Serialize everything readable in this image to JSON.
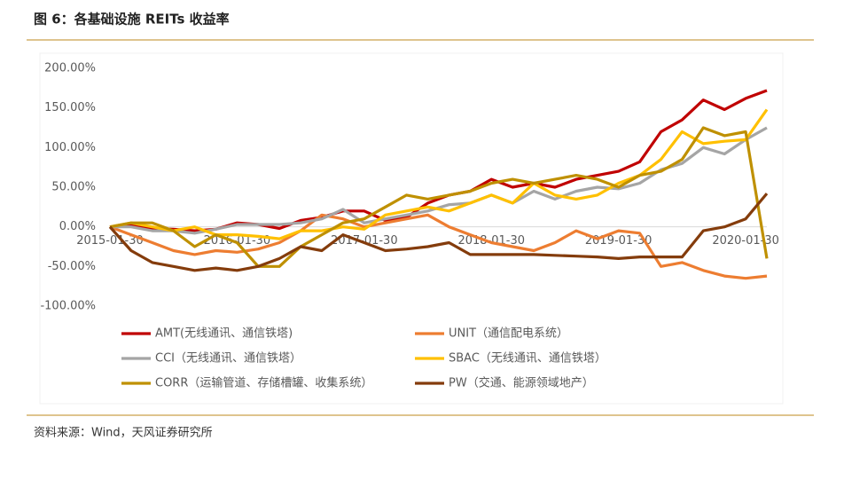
{
  "chart_data": {
    "type": "line",
    "title": "图 6：各基础设施 REITs 收益率",
    "source": "资料来源：Wind，天风证券研究所",
    "categories": [
      "2015-01-30",
      null,
      null,
      null,
      null,
      null,
      "2016-01-30",
      null,
      null,
      null,
      null,
      null,
      "2017-01-30",
      null,
      null,
      null,
      null,
      null,
      "2018-01-30",
      null,
      null,
      null,
      null,
      null,
      "2019-01-30",
      null,
      null,
      null,
      null,
      null,
      "2020-01-30",
      null
    ],
    "ylim": [
      -100,
      200
    ],
    "yticks": [
      {
        "value": 200,
        "label": "200.00%"
      },
      {
        "value": 150,
        "label": "150.00%"
      },
      {
        "value": 100,
        "label": "100.00%"
      },
      {
        "value": 50,
        "label": "50.00%"
      },
      {
        "value": 0,
        "label": "0.00%"
      },
      {
        "value": -50,
        "label": "-50.00%"
      },
      {
        "value": -100,
        "label": "-100.00%"
      }
    ],
    "grid": false,
    "legend": "bottom",
    "series": [
      {
        "name": "AMT(无线通讯、通信铁塔)",
        "color": "#c00000",
        "values": [
          0,
          2,
          -2,
          -3,
          -5,
          -3,
          5,
          3,
          -2,
          8,
          12,
          20,
          20,
          8,
          12,
          30,
          40,
          45,
          60,
          50,
          55,
          50,
          60,
          65,
          70,
          82,
          120,
          135,
          160,
          148,
          162,
          172
        ]
      },
      {
        "name": "UNIT（通信配电系统）",
        "color": "#ed7d31",
        "values": [
          0,
          -10,
          -20,
          -30,
          -35,
          -30,
          -32,
          -28,
          -20,
          -5,
          15,
          10,
          0,
          5,
          10,
          15,
          0,
          -10,
          -20,
          -25,
          -30,
          -20,
          -5,
          -15,
          -5,
          -8,
          -50,
          -45,
          -55,
          -62,
          -65,
          -62
        ]
      },
      {
        "name": "CCI（无线通讯、通信铁塔）",
        "color": "#a5a5a5",
        "values": [
          0,
          0,
          -5,
          -5,
          -8,
          -3,
          3,
          3,
          3,
          5,
          10,
          22,
          5,
          10,
          15,
          20,
          28,
          30,
          40,
          30,
          45,
          35,
          45,
          50,
          48,
          55,
          72,
          80,
          100,
          92,
          110,
          125
        ]
      },
      {
        "name": "SBAC（无线通讯、通信铁塔）",
        "color": "#ffc000",
        "values": [
          0,
          5,
          0,
          -5,
          0,
          -10,
          -10,
          -12,
          -15,
          -5,
          -5,
          0,
          -3,
          15,
          20,
          25,
          20,
          30,
          40,
          30,
          55,
          40,
          35,
          40,
          55,
          65,
          85,
          120,
          105,
          108,
          110,
          148
        ]
      },
      {
        "name": "CORR（运输管道、存储槽罐、收集系统）",
        "color": "#bf9000",
        "values": [
          0,
          5,
          5,
          -5,
          -25,
          -10,
          -20,
          -50,
          -50,
          -25,
          -10,
          5,
          10,
          25,
          40,
          35,
          40,
          45,
          55,
          60,
          55,
          60,
          65,
          60,
          50,
          65,
          70,
          85,
          125,
          115,
          120,
          -40
        ]
      },
      {
        "name": "PW（交通、能源领域地产）",
        "color": "#843c0c",
        "values": [
          0,
          -30,
          -45,
          -50,
          -55,
          -52,
          -55,
          -50,
          -40,
          -25,
          -30,
          -10,
          -20,
          -30,
          -28,
          -25,
          -20,
          -35,
          -35,
          -35,
          -35,
          -36,
          -37,
          -38,
          -40,
          -38,
          -38,
          -38,
          -5,
          0,
          10,
          42
        ]
      }
    ]
  }
}
